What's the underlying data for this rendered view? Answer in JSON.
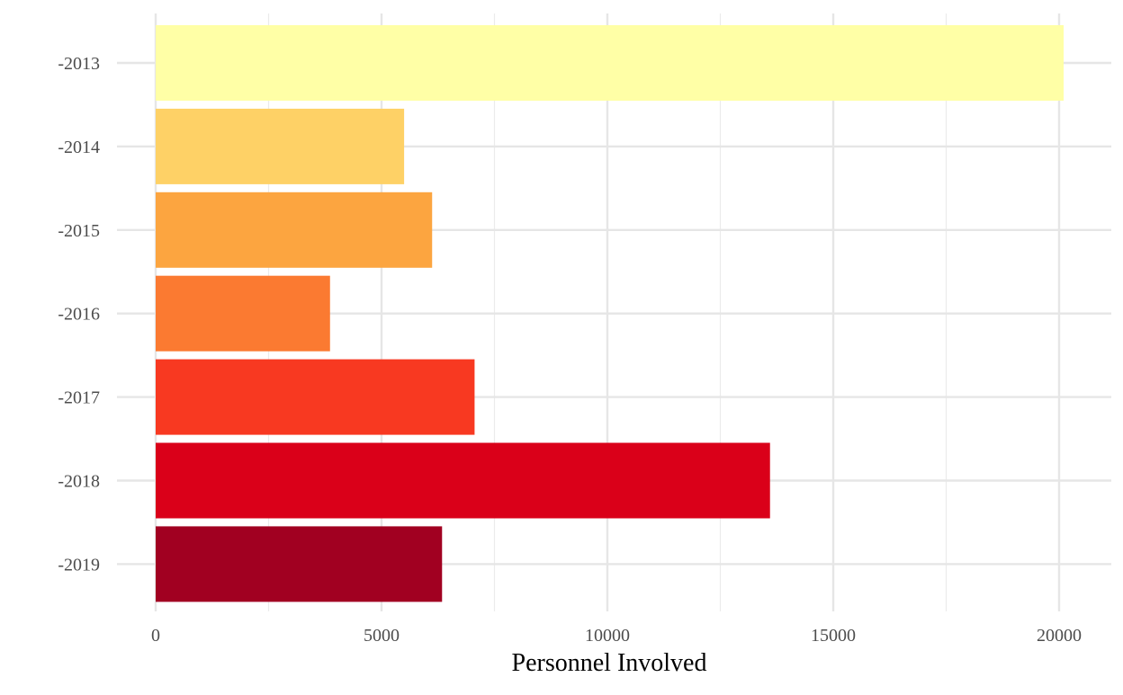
{
  "chart_data": {
    "type": "bar",
    "orientation": "horizontal",
    "categories": [
      "-2013",
      "-2014",
      "-2015",
      "-2016",
      "-2017",
      "-2018",
      "-2019"
    ],
    "values": [
      20100,
      5500,
      6120,
      3860,
      7060,
      13600,
      6340
    ],
    "colors": [
      "#FFFFA6",
      "#FED166",
      "#FCA540",
      "#FB7A31",
      "#F83921",
      "#DA0019",
      "#A10021"
    ],
    "title": "",
    "xlabel": "Personnel Involved",
    "ylabel": "",
    "xlim": [
      0,
      21000
    ],
    "xticks": [
      0,
      5000,
      10000,
      15000,
      20000
    ],
    "xtick_labels": [
      "0",
      "5000",
      "10000",
      "15000",
      "20000"
    ],
    "grid": true,
    "legend": "none"
  }
}
